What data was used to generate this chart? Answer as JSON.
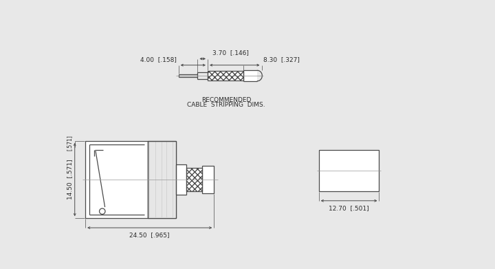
{
  "bg_color": "#e8e8e8",
  "line_color": "#4a4a4a",
  "text_color": "#2a2a2a",
  "font_size": 6.5,
  "dim_annotations": {
    "top_3p70": "3.70  [.146]",
    "top_4p00": "4.00  [.158]",
    "top_8p30": "8.30  [.327]",
    "bottom_14p50": "14.50  [.571]",
    "bottom_24p50": "24.50  [.965]",
    "side_12p70": "12.70  [.501]"
  },
  "recommended_text_1": "RECOMMENDED",
  "recommended_text_2": "CABLE  STRIPPING  DIMS."
}
